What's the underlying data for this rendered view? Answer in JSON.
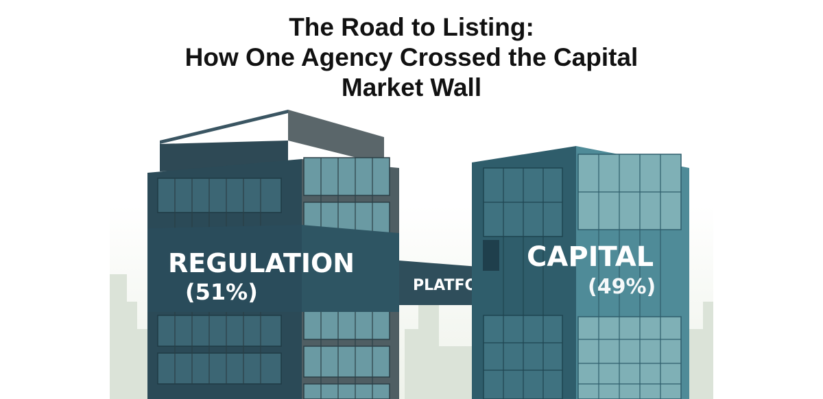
{
  "title": {
    "line1": "The Road to Listing:",
    "line2": "How One Agency Crossed the Capital",
    "line3": "Market Wall"
  },
  "illustration": {
    "left_building": {
      "label": "REGULATION",
      "percent": "(51%)"
    },
    "bridge": {
      "label": "PLATFORM"
    },
    "right_building": {
      "label": "CAPITAL",
      "percent": "(49%)"
    }
  },
  "colors": {
    "left_front": "#2b4a57",
    "left_side": "#4f5e63",
    "right_front": "#2f5d6b",
    "right_side": "#4f8b98",
    "window": "#5e8f98",
    "skyline": "#dfe6dc"
  }
}
